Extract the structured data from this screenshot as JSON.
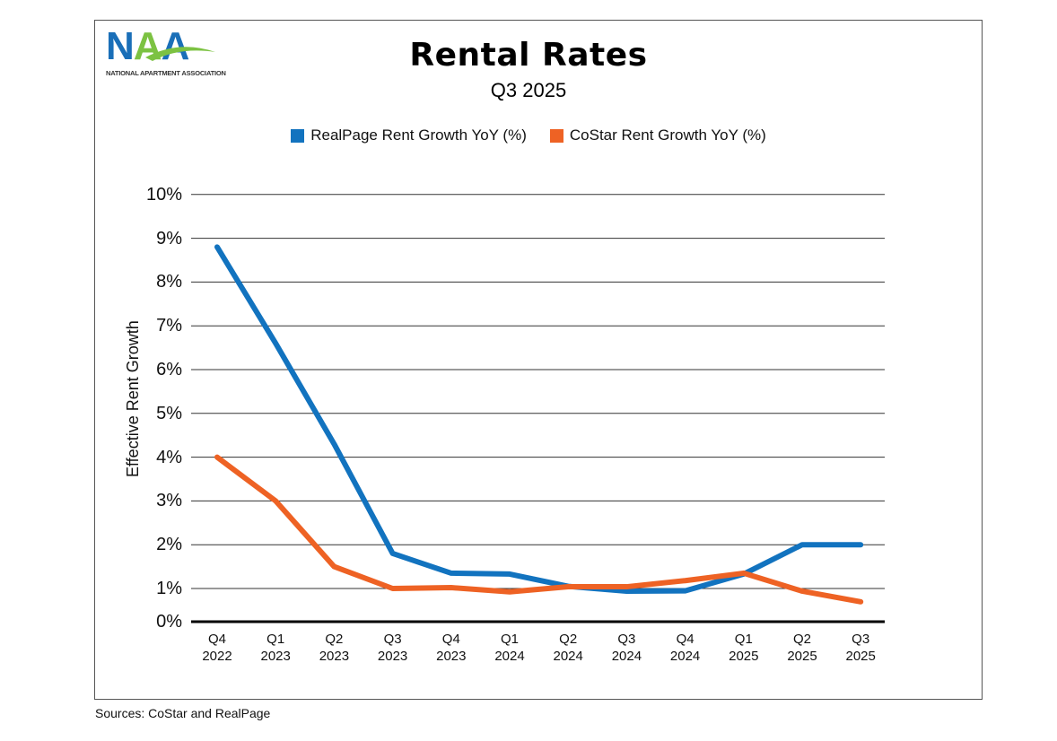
{
  "logo": {
    "text": "NAA",
    "tagline": "NATIONAL APARTMENT ASSOCIATION"
  },
  "sources": "Sources: CoStar and RealPage",
  "chart_data": {
    "type": "line",
    "title": "Rental Rates",
    "subtitle": "Q3 2025",
    "ylabel": "Effective Rent Growth",
    "xlabel": "",
    "ylim": [
      0,
      10
    ],
    "yticks": [
      "0%",
      "1%",
      "2%",
      "3%",
      "4%",
      "5%",
      "6%",
      "7%",
      "8%",
      "9%",
      "10%"
    ],
    "grid": true,
    "legend_position": "top-center",
    "categories": [
      [
        "Q4",
        "2022"
      ],
      [
        "Q1",
        "2023"
      ],
      [
        "Q2",
        "2023"
      ],
      [
        "Q3",
        "2023"
      ],
      [
        "Q4",
        "2023"
      ],
      [
        "Q1",
        "2024"
      ],
      [
        "Q2",
        "2024"
      ],
      [
        "Q3",
        "2024"
      ],
      [
        "Q4",
        "2024"
      ],
      [
        "Q1",
        "2025"
      ],
      [
        "Q2",
        "2025"
      ],
      [
        "Q3",
        "2025"
      ]
    ],
    "series": [
      {
        "name": "RealPage Rent Growth YoY (%)",
        "color": "#1273bf",
        "values": [
          8.8,
          6.6,
          4.3,
          1.8,
          1.35,
          1.33,
          1.05,
          0.92,
          0.93,
          1.33,
          2.0,
          2.0
        ]
      },
      {
        "name": "CoStar Rent Growth YoY (%)",
        "color": "#ee6224",
        "values": [
          4.0,
          3.0,
          1.5,
          1.0,
          1.02,
          0.9,
          1.04,
          1.04,
          1.18,
          1.35,
          0.92,
          0.6
        ]
      }
    ]
  }
}
